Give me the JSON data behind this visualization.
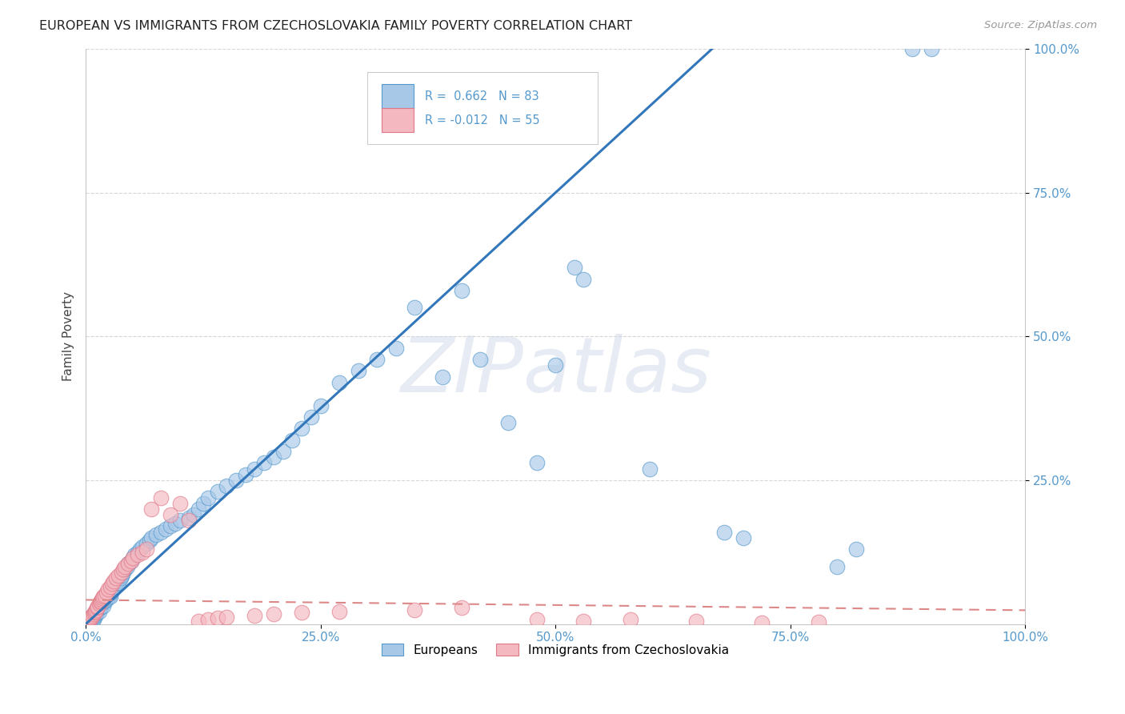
{
  "title": "EUROPEAN VS IMMIGRANTS FROM CZECHOSLOVAKIA FAMILY POVERTY CORRELATION CHART",
  "source": "Source: ZipAtlas.com",
  "ylabel": "Family Poverty",
  "x_tick_labels": [
    "0.0%",
    "25.0%",
    "50.0%",
    "75.0%",
    "100.0%"
  ],
  "y_tick_labels": [
    "100.0%",
    "75.0%",
    "50.0%",
    "25.0%"
  ],
  "x_ticks": [
    0,
    0.25,
    0.5,
    0.75,
    1.0
  ],
  "y_ticks": [
    1.0,
    0.75,
    0.5,
    0.25
  ],
  "blue_fill": "#a8c8e8",
  "blue_edge": "#5599cc",
  "pink_fill": "#f4b8c0",
  "pink_edge": "#e07888",
  "blue_line_color": "#3377bb",
  "pink_line_color": "#dd8888",
  "R_blue": 0.662,
  "N_blue": 83,
  "R_pink": -0.012,
  "N_pink": 55,
  "watermark": "ZIPatlas",
  "legend_blue_label": "Europeans",
  "legend_pink_label": "Immigrants from Czechoslovakia",
  "blue_x": [
    0.005,
    0.007,
    0.008,
    0.009,
    0.01,
    0.011,
    0.012,
    0.013,
    0.014,
    0.015,
    0.016,
    0.017,
    0.018,
    0.019,
    0.02,
    0.022,
    0.023,
    0.025,
    0.026,
    0.027,
    0.028,
    0.03,
    0.032,
    0.034,
    0.035,
    0.037,
    0.038,
    0.04,
    0.042,
    0.044,
    0.045,
    0.048,
    0.05,
    0.052,
    0.055,
    0.058,
    0.06,
    0.065,
    0.068,
    0.07,
    0.075,
    0.08,
    0.085,
    0.09,
    0.095,
    0.1,
    0.11,
    0.115,
    0.12,
    0.125,
    0.13,
    0.14,
    0.15,
    0.16,
    0.17,
    0.18,
    0.19,
    0.2,
    0.21,
    0.22,
    0.23,
    0.24,
    0.25,
    0.27,
    0.29,
    0.31,
    0.33,
    0.35,
    0.38,
    0.4,
    0.42,
    0.45,
    0.48,
    0.5,
    0.52,
    0.53,
    0.6,
    0.68,
    0.7,
    0.8,
    0.82,
    0.88,
    0.9
  ],
  "blue_y": [
    0.005,
    0.01,
    0.008,
    0.012,
    0.015,
    0.018,
    0.02,
    0.025,
    0.022,
    0.028,
    0.03,
    0.035,
    0.038,
    0.032,
    0.04,
    0.042,
    0.045,
    0.05,
    0.048,
    0.055,
    0.06,
    0.065,
    0.07,
    0.075,
    0.072,
    0.08,
    0.085,
    0.09,
    0.095,
    0.1,
    0.105,
    0.11,
    0.115,
    0.12,
    0.125,
    0.13,
    0.135,
    0.14,
    0.145,
    0.15,
    0.155,
    0.16,
    0.165,
    0.17,
    0.175,
    0.18,
    0.185,
    0.19,
    0.2,
    0.21,
    0.22,
    0.23,
    0.24,
    0.25,
    0.26,
    0.27,
    0.28,
    0.29,
    0.3,
    0.32,
    0.34,
    0.36,
    0.38,
    0.42,
    0.44,
    0.46,
    0.48,
    0.55,
    0.43,
    0.58,
    0.46,
    0.35,
    0.28,
    0.45,
    0.62,
    0.6,
    0.27,
    0.16,
    0.15,
    0.1,
    0.13,
    1.0,
    1.0
  ],
  "pink_x": [
    0.003,
    0.004,
    0.005,
    0.006,
    0.007,
    0.008,
    0.009,
    0.01,
    0.011,
    0.012,
    0.013,
    0.014,
    0.015,
    0.016,
    0.017,
    0.018,
    0.019,
    0.02,
    0.022,
    0.024,
    0.026,
    0.028,
    0.03,
    0.032,
    0.035,
    0.038,
    0.04,
    0.042,
    0.045,
    0.048,
    0.05,
    0.055,
    0.06,
    0.065,
    0.07,
    0.08,
    0.09,
    0.1,
    0.11,
    0.12,
    0.13,
    0.14,
    0.15,
    0.18,
    0.2,
    0.23,
    0.27,
    0.35,
    0.4,
    0.48,
    0.53,
    0.58,
    0.65,
    0.72,
    0.78
  ],
  "pink_y": [
    0.005,
    0.008,
    0.01,
    0.012,
    0.015,
    0.018,
    0.02,
    0.022,
    0.025,
    0.028,
    0.03,
    0.035,
    0.038,
    0.04,
    0.042,
    0.045,
    0.048,
    0.05,
    0.055,
    0.06,
    0.065,
    0.07,
    0.075,
    0.08,
    0.085,
    0.09,
    0.095,
    0.1,
    0.105,
    0.11,
    0.115,
    0.12,
    0.125,
    0.13,
    0.2,
    0.22,
    0.19,
    0.21,
    0.18,
    0.005,
    0.008,
    0.01,
    0.012,
    0.015,
    0.018,
    0.02,
    0.022,
    0.025,
    0.028,
    0.008,
    0.005,
    0.008,
    0.005,
    0.002,
    0.003
  ]
}
